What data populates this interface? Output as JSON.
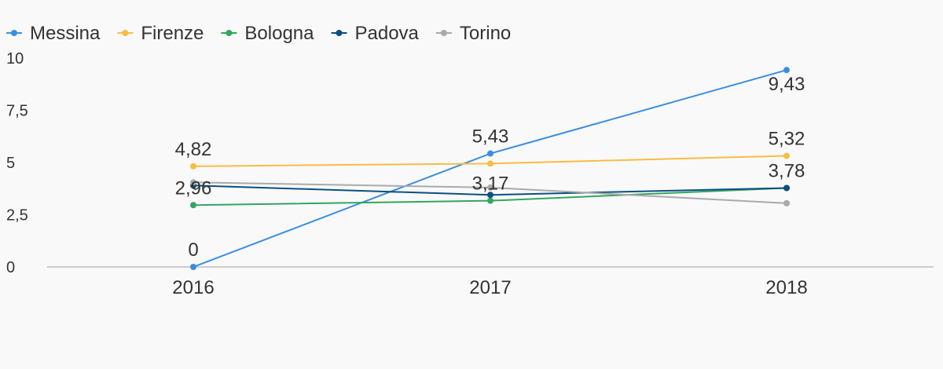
{
  "chart_data": {
    "type": "line",
    "categories": [
      "2016",
      "2017",
      "2018"
    ],
    "ylim": [
      0,
      10
    ],
    "yticks": [
      0,
      2.5,
      5,
      7.5,
      10
    ],
    "ytick_labels": [
      "0",
      "2,5",
      "5",
      "7,5",
      "10"
    ],
    "grid": false,
    "legend_position": "top-left",
    "series": [
      {
        "name": "Messina",
        "color": "#3b8de0",
        "values": [
          0,
          5.43,
          9.43
        ],
        "labels": [
          "0",
          "5,43",
          "9,43"
        ]
      },
      {
        "name": "Firenze",
        "color": "#f9bc45",
        "values": [
          4.82,
          4.95,
          5.32
        ],
        "labels": [
          "4,82",
          "",
          "5,32"
        ]
      },
      {
        "name": "Bologna",
        "color": "#33a65e",
        "values": [
          2.96,
          3.17,
          3.78
        ],
        "labels": [
          "2,96",
          "3,17",
          ""
        ]
      },
      {
        "name": "Padova",
        "color": "#0c4f82",
        "values": [
          3.9,
          3.45,
          3.78
        ],
        "labels": [
          "",
          "",
          "3,78"
        ]
      },
      {
        "name": "Torino",
        "color": "#aaaaaa",
        "values": [
          4.05,
          3.8,
          3.05
        ],
        "labels": [
          "",
          "",
          ""
        ]
      }
    ]
  }
}
